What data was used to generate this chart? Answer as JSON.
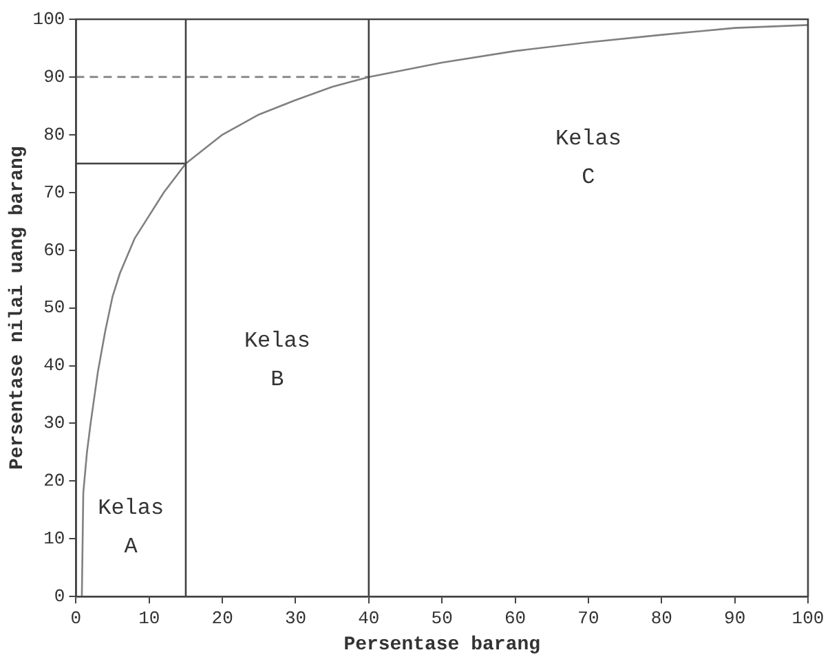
{
  "chart_data": {
    "type": "line",
    "xlabel": "Persentase barang",
    "ylabel": "Persentase nilai uang barang",
    "xlim": [
      0,
      100
    ],
    "ylim": [
      0,
      100
    ],
    "xticks": [
      0,
      10,
      20,
      30,
      40,
      50,
      60,
      70,
      80,
      90,
      100
    ],
    "yticks": [
      0,
      10,
      20,
      30,
      40,
      50,
      60,
      70,
      80,
      90,
      100
    ],
    "grid": false,
    "legend": false,
    "marker": "none",
    "series": [
      {
        "color": "#808080",
        "x": [
          0.8,
          1,
          1.5,
          2,
          3,
          4,
          5,
          6,
          8,
          10,
          12,
          15,
          20,
          25,
          30,
          35,
          40,
          50,
          60,
          70,
          80,
          90,
          100
        ],
        "values": [
          0,
          18,
          25,
          30,
          39,
          46,
          52,
          56,
          62,
          66,
          70,
          75,
          80,
          83.5,
          86,
          88.3,
          90,
          92.5,
          94.5,
          96,
          97.3,
          98.5,
          99
        ]
      },
      {
        "color": "#404040",
        "x": [
          0,
          15
        ],
        "values": [
          75,
          75
        ],
        "line_style": "solid"
      },
      {
        "color": "#808080",
        "x": [
          0,
          40
        ],
        "values": [
          90,
          90
        ],
        "line_style": "dashed"
      }
    ],
    "ref_lines": [
      {
        "axis": "x",
        "value": 15,
        "color": "#404040"
      },
      {
        "axis": "x",
        "value": 40,
        "color": "#404040"
      }
    ],
    "annotations": [
      "Kelas A",
      "Kelas B",
      "Kelas C"
    ]
  }
}
